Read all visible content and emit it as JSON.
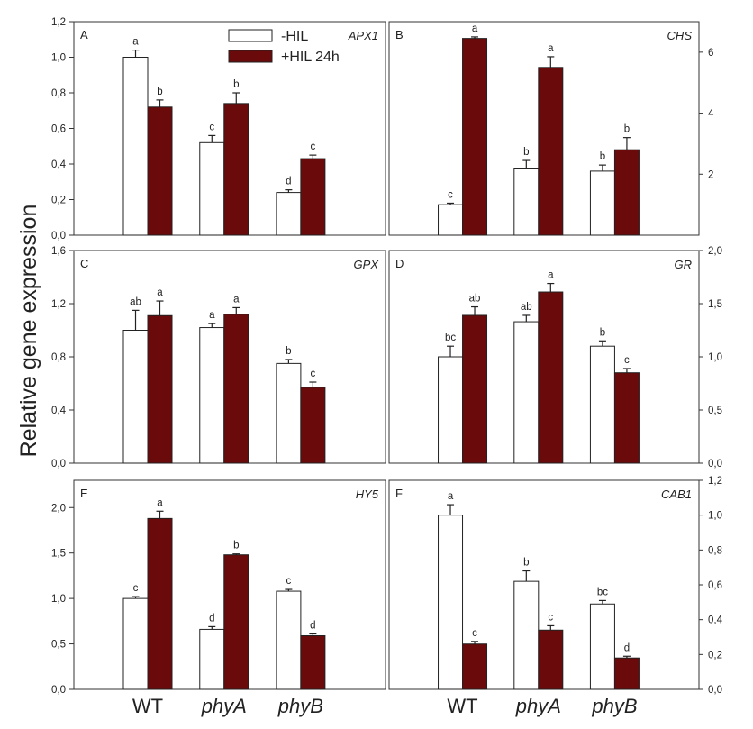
{
  "chart_data": {
    "type": "bar",
    "ylabel": "Relative gene expression",
    "categories": [
      "WT",
      "phyA",
      "phyB"
    ],
    "category_style": [
      "normal",
      "italic",
      "italic"
    ],
    "legend": {
      "placement": "top-center of panel A",
      "entries": [
        {
          "name": "-HIL",
          "color": "#ffffff"
        },
        {
          "name": "+HIL 24h",
          "color": "#6b0a0a"
        }
      ]
    },
    "colors": {
      "hil_minus": "#ffffff",
      "hil_plus": "#6b0a0a",
      "axis": "#333333"
    },
    "panels": [
      {
        "id": "A",
        "gene": "APX1",
        "axis_side": "left",
        "ylim": [
          0,
          1.2
        ],
        "yticks": [
          0,
          0.2,
          0.4,
          0.6,
          0.8,
          1.0,
          1.2
        ],
        "ytick_labels": [
          "0,0",
          "0,2",
          "0,4",
          "0,6",
          "0,8",
          "1,0",
          "1,2"
        ],
        "series": [
          {
            "name": "-HIL",
            "values": [
              1.0,
              0.52,
              0.24
            ],
            "errors": [
              0.04,
              0.04,
              0.015
            ],
            "letters": [
              "a",
              "c",
              "d"
            ]
          },
          {
            "name": "+HIL 24h",
            "values": [
              0.72,
              0.74,
              0.43
            ],
            "errors": [
              0.04,
              0.06,
              0.02
            ],
            "letters": [
              "b",
              "b",
              "c"
            ]
          }
        ]
      },
      {
        "id": "B",
        "gene": "CHS",
        "axis_side": "right",
        "ylim": [
          0,
          7
        ],
        "yticks": [
          2,
          4,
          6
        ],
        "ytick_labels": [
          "2",
          "4",
          "6"
        ],
        "series": [
          {
            "name": "-HIL",
            "values": [
              1.0,
              2.2,
              2.1
            ],
            "errors": [
              0.05,
              0.25,
              0.2
            ],
            "letters": [
              "c",
              "b",
              "b"
            ]
          },
          {
            "name": "+HIL 24h",
            "values": [
              6.45,
              5.5,
              2.8
            ],
            "errors": [
              0.05,
              0.35,
              0.4
            ],
            "letters": [
              "a",
              "a",
              "b"
            ]
          }
        ]
      },
      {
        "id": "C",
        "gene": "GPX",
        "axis_side": "left",
        "ylim": [
          0,
          1.6
        ],
        "yticks": [
          0,
          0.4,
          0.8,
          1.2,
          1.6
        ],
        "ytick_labels": [
          "0,0",
          "0,4",
          "0,8",
          "1,2",
          "1,6"
        ],
        "series": [
          {
            "name": "-HIL",
            "values": [
              1.0,
              1.02,
              0.75
            ],
            "errors": [
              0.15,
              0.03,
              0.03
            ],
            "letters": [
              "ab",
              "a",
              "b"
            ]
          },
          {
            "name": "+HIL 24h",
            "values": [
              1.11,
              1.12,
              0.57
            ],
            "errors": [
              0.11,
              0.05,
              0.04
            ],
            "letters": [
              "a",
              "a",
              "c"
            ]
          }
        ]
      },
      {
        "id": "D",
        "gene": "GR",
        "axis_side": "right",
        "ylim": [
          0,
          2.0
        ],
        "yticks": [
          0,
          0.5,
          1.0,
          1.5,
          2.0
        ],
        "ytick_labels": [
          "0,0",
          "0,5",
          "1,0",
          "1,5",
          "2,0"
        ],
        "series": [
          {
            "name": "-HIL",
            "values": [
              1.0,
              1.33,
              1.1
            ],
            "errors": [
              0.1,
              0.06,
              0.05
            ],
            "letters": [
              "bc",
              "ab",
              "b"
            ]
          },
          {
            "name": "+HIL 24h",
            "values": [
              1.39,
              1.61,
              0.85
            ],
            "errors": [
              0.08,
              0.08,
              0.04
            ],
            "letters": [
              "ab",
              "a",
              "c"
            ]
          }
        ]
      },
      {
        "id": "E",
        "gene": "HY5",
        "axis_side": "left",
        "ylim": [
          0,
          2.3
        ],
        "yticks": [
          0,
          0.5,
          1.0,
          1.5,
          2.0
        ],
        "ytick_labels": [
          "0,0",
          "0,5",
          "1,0",
          "1,5",
          "2,0"
        ],
        "series": [
          {
            "name": "-HIL",
            "values": [
              1.0,
              0.66,
              1.08
            ],
            "errors": [
              0.02,
              0.03,
              0.02
            ],
            "letters": [
              "c",
              "d",
              "c"
            ]
          },
          {
            "name": "+HIL 24h",
            "values": [
              1.88,
              1.48,
              0.59
            ],
            "errors": [
              0.08,
              0.01,
              0.02
            ],
            "letters": [
              "a",
              "b",
              "d"
            ]
          }
        ]
      },
      {
        "id": "F",
        "gene": "CAB1",
        "axis_side": "right",
        "ylim": [
          0,
          1.2
        ],
        "yticks": [
          0,
          0.2,
          0.4,
          0.6,
          0.8,
          1.0,
          1.2
        ],
        "ytick_labels": [
          "0,0",
          "0,2",
          "0,4",
          "0,6",
          "0,8",
          "1,0",
          "1,2"
        ],
        "series": [
          {
            "name": "-HIL",
            "values": [
              1.0,
              0.62,
              0.49
            ],
            "errors": [
              0.06,
              0.06,
              0.02
            ],
            "letters": [
              "a",
              "b",
              "bc"
            ]
          },
          {
            "name": "+HIL 24h",
            "values": [
              0.26,
              0.34,
              0.18
            ],
            "errors": [
              0.015,
              0.025,
              0.01
            ],
            "letters": [
              "c",
              "c",
              "d"
            ]
          }
        ]
      }
    ]
  }
}
